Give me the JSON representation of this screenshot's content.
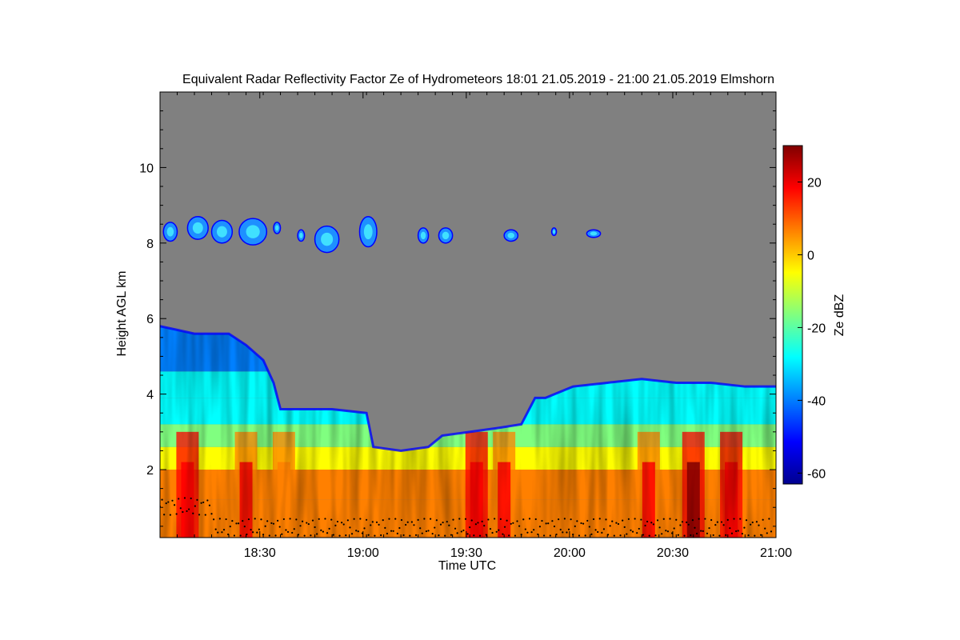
{
  "chart_data": {
    "type": "heatmap",
    "title": "Equivalent Radar Reflectivity Factor Ze of Hydrometeors   18:01 21.05.2019 - 21:00 21.05.2019 Elmshorn",
    "xlabel": "Time UTC",
    "ylabel": "Height AGL km",
    "colorbar_label": "Ze dBZ",
    "x_range_utc": [
      "18:01",
      "21:00"
    ],
    "x_tick_labels": [
      "18:30",
      "19:00",
      "19:30",
      "20:00",
      "20:30",
      "21:00"
    ],
    "x_tick_minutes": [
      29,
      59,
      89,
      119,
      149,
      179
    ],
    "xlim_minutes": [
      0,
      179
    ],
    "ylim_km": [
      0.2,
      12.0
    ],
    "y_ticks_km": [
      2,
      4,
      6,
      8,
      10
    ],
    "y_tick_labels": [
      "2",
      "4",
      "6",
      "8",
      "10"
    ],
    "colorbar_ticks_dbz": [
      20,
      0,
      -20,
      -40,
      -60
    ],
    "colorbar_tick_labels": [
      "20",
      "0",
      "-20",
      "-40",
      "-60"
    ],
    "colorbar_range_dbz": [
      -63,
      30
    ],
    "background_color": "#808080",
    "colormap": [
      "#00008f",
      "#0000ff",
      "#0080ff",
      "#00ffff",
      "#80ff80",
      "#ffff00",
      "#ff8000",
      "#ff0000",
      "#800000"
    ],
    "cloud_top_km": [
      {
        "minute": 0,
        "km": 5.8
      },
      {
        "minute": 5,
        "km": 5.7
      },
      {
        "minute": 10,
        "km": 5.6
      },
      {
        "minute": 15,
        "km": 5.6
      },
      {
        "minute": 20,
        "km": 5.6
      },
      {
        "minute": 25,
        "km": 5.3
      },
      {
        "minute": 30,
        "km": 4.9
      },
      {
        "minute": 33,
        "km": 4.3
      },
      {
        "minute": 35,
        "km": 3.6
      },
      {
        "minute": 40,
        "km": 3.6
      },
      {
        "minute": 50,
        "km": 3.6
      },
      {
        "minute": 60,
        "km": 3.5
      },
      {
        "minute": 62,
        "km": 2.6
      },
      {
        "minute": 70,
        "km": 2.5
      },
      {
        "minute": 78,
        "km": 2.6
      },
      {
        "minute": 82,
        "km": 2.9
      },
      {
        "minute": 90,
        "km": 3.0
      },
      {
        "minute": 98,
        "km": 3.1
      },
      {
        "minute": 105,
        "km": 3.2
      },
      {
        "minute": 109,
        "km": 3.9
      },
      {
        "minute": 112,
        "km": 3.9
      },
      {
        "minute": 120,
        "km": 4.2
      },
      {
        "minute": 130,
        "km": 4.3
      },
      {
        "minute": 140,
        "km": 4.4
      },
      {
        "minute": 150,
        "km": 4.3
      },
      {
        "minute": 160,
        "km": 4.3
      },
      {
        "minute": 170,
        "km": 4.2
      },
      {
        "minute": 179,
        "km": 4.2
      }
    ],
    "cirrus_patches": [
      {
        "minute": 1,
        "km": 8.3,
        "minute_width": 4,
        "km_height": 0.5
      },
      {
        "minute": 8,
        "km": 8.4,
        "minute_width": 6,
        "km_height": 0.6
      },
      {
        "minute": 15,
        "km": 8.3,
        "minute_width": 6,
        "km_height": 0.6
      },
      {
        "minute": 23,
        "km": 8.3,
        "minute_width": 8,
        "km_height": 0.7
      },
      {
        "minute": 33,
        "km": 8.4,
        "minute_width": 2,
        "km_height": 0.3
      },
      {
        "minute": 40,
        "km": 8.2,
        "minute_width": 2,
        "km_height": 0.3
      },
      {
        "minute": 45,
        "km": 8.1,
        "minute_width": 7,
        "km_height": 0.7
      },
      {
        "minute": 58,
        "km": 8.3,
        "minute_width": 5,
        "km_height": 0.8
      },
      {
        "minute": 75,
        "km": 8.2,
        "minute_width": 3,
        "km_height": 0.4
      },
      {
        "minute": 81,
        "km": 8.2,
        "minute_width": 4,
        "km_height": 0.4
      },
      {
        "minute": 100,
        "km": 8.2,
        "minute_width": 4,
        "km_height": 0.3
      },
      {
        "minute": 114,
        "km": 8.3,
        "minute_width": 1,
        "km_height": 0.2
      },
      {
        "minute": 124,
        "km": 8.25,
        "minute_width": 4,
        "km_height": 0.2
      }
    ],
    "strong_echo_columns": [
      {
        "minute": 8,
        "dbz": 22
      },
      {
        "minute": 25,
        "dbz": 20
      },
      {
        "minute": 36,
        "dbz": 12
      },
      {
        "minute": 92,
        "dbz": 22
      },
      {
        "minute": 100,
        "dbz": 18
      },
      {
        "minute": 142,
        "dbz": 20
      },
      {
        "minute": 155,
        "dbz": 26
      },
      {
        "minute": 166,
        "dbz": 24
      }
    ]
  }
}
